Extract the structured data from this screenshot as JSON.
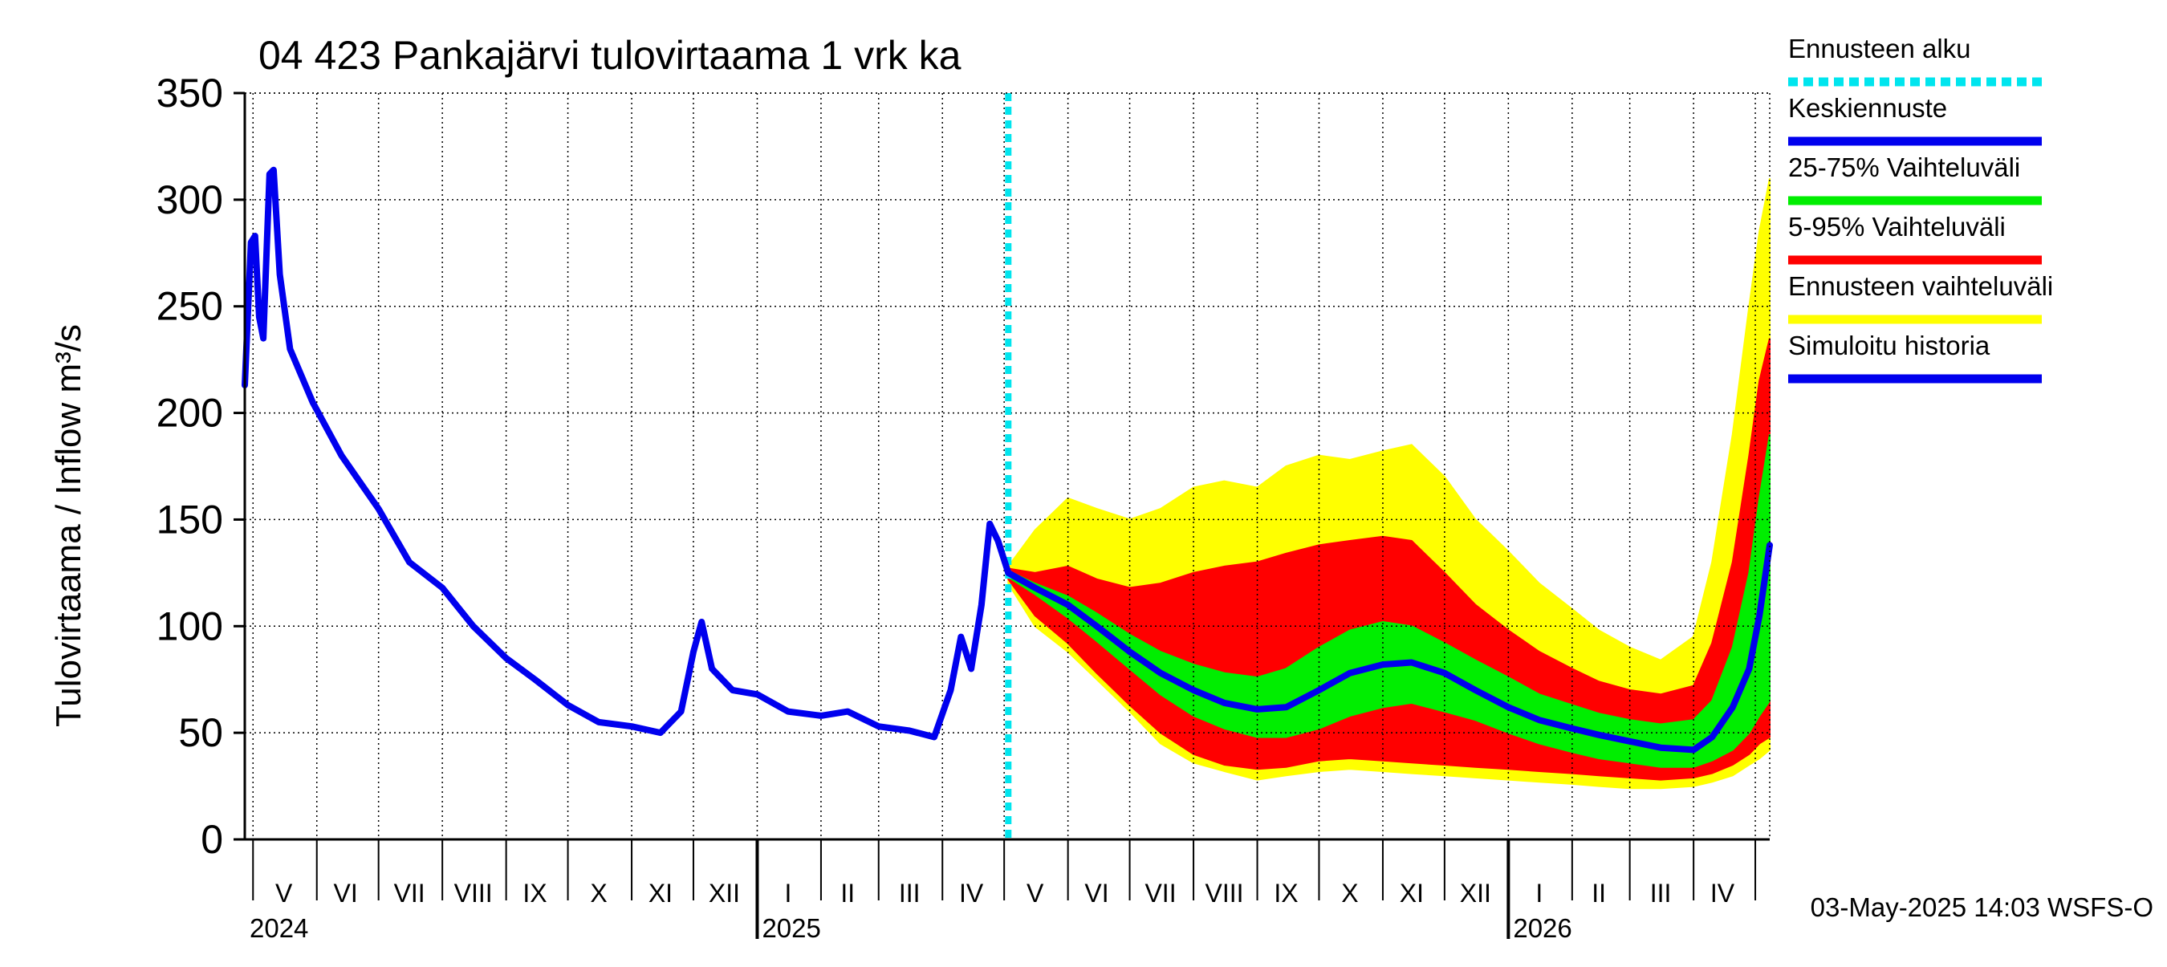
{
  "chart_data": {
    "type": "area",
    "title": "04 423 Pankajärvi tulovirtaama 1 vrk ka",
    "ylabel": "Tulovirtaama / Inflow    m³/s",
    "ylim": [
      0,
      350
    ],
    "yticks": [
      0,
      50,
      100,
      150,
      200,
      250,
      300,
      350
    ],
    "xlim": [
      "2024-04-27",
      "2026-05-08"
    ],
    "grid": true,
    "legend_position": "right",
    "forecast_start": "2025-05-03",
    "footer": "03-May-2025 14:03 WSFS-O",
    "month_labels": [
      {
        "label": "V",
        "date": "2024-05-16"
      },
      {
        "label": "VI",
        "date": "2024-06-15"
      },
      {
        "label": "VII",
        "date": "2024-07-16"
      },
      {
        "label": "VIII",
        "date": "2024-08-16"
      },
      {
        "label": "IX",
        "date": "2024-09-15"
      },
      {
        "label": "X",
        "date": "2024-10-16"
      },
      {
        "label": "XI",
        "date": "2024-11-15"
      },
      {
        "label": "XII",
        "date": "2024-12-16"
      },
      {
        "label": "I",
        "date": "2025-01-16"
      },
      {
        "label": "II",
        "date": "2025-02-14"
      },
      {
        "label": "III",
        "date": "2025-03-16"
      },
      {
        "label": "IV",
        "date": "2025-04-15"
      },
      {
        "label": "V",
        "date": "2025-05-16"
      },
      {
        "label": "VI",
        "date": "2025-06-15"
      },
      {
        "label": "VII",
        "date": "2025-07-16"
      },
      {
        "label": "VIII",
        "date": "2025-08-16"
      },
      {
        "label": "IX",
        "date": "2025-09-15"
      },
      {
        "label": "X",
        "date": "2025-10-16"
      },
      {
        "label": "XI",
        "date": "2025-11-15"
      },
      {
        "label": "XII",
        "date": "2025-12-16"
      },
      {
        "label": "I",
        "date": "2026-01-16"
      },
      {
        "label": "II",
        "date": "2026-02-14"
      },
      {
        "label": "III",
        "date": "2026-03-16"
      },
      {
        "label": "IV",
        "date": "2026-04-15"
      }
    ],
    "year_labels": [
      {
        "label": "2024",
        "date": "2024-04-27"
      },
      {
        "label": "2025",
        "date": "2025-01-01"
      },
      {
        "label": "2026",
        "date": "2026-01-01"
      }
    ],
    "legend": [
      {
        "label": "Ennusteen alku",
        "color": "#00e5ee",
        "style": "dashed"
      },
      {
        "label": "Keskiennuste",
        "color": "#0000ee",
        "style": "solid"
      },
      {
        "label": "25-75% Vaihteluväli",
        "color": "#00ee00",
        "style": "solid"
      },
      {
        "label": "5-95% Vaihteluväli",
        "color": "#ff0000",
        "style": "solid"
      },
      {
        "label": "Ennusteen vaihteluväli",
        "color": "#ffff00",
        "style": "solid"
      },
      {
        "label": "Simuloitu historia",
        "color": "#0000ee",
        "style": "solid"
      }
    ],
    "series": [
      {
        "name": "Simuloitu historia",
        "color": "#0000ee",
        "points": [
          [
            "2024-04-27",
            213
          ],
          [
            "2024-04-30",
            280
          ],
          [
            "2024-05-02",
            283
          ],
          [
            "2024-05-04",
            245
          ],
          [
            "2024-05-06",
            235
          ],
          [
            "2024-05-09",
            312
          ],
          [
            "2024-05-11",
            314
          ],
          [
            "2024-05-14",
            265
          ],
          [
            "2024-05-19",
            230
          ],
          [
            "2024-05-30",
            205
          ],
          [
            "2024-06-13",
            180
          ],
          [
            "2024-07-01",
            155
          ],
          [
            "2024-07-16",
            130
          ],
          [
            "2024-08-01",
            118
          ],
          [
            "2024-08-16",
            100
          ],
          [
            "2024-09-01",
            85
          ],
          [
            "2024-09-15",
            75
          ],
          [
            "2024-10-01",
            63
          ],
          [
            "2024-10-16",
            55
          ],
          [
            "2024-11-01",
            53
          ],
          [
            "2024-11-15",
            50
          ],
          [
            "2024-11-25",
            60
          ],
          [
            "2024-12-01",
            88
          ],
          [
            "2024-12-05",
            102
          ],
          [
            "2024-12-10",
            80
          ],
          [
            "2024-12-20",
            70
          ],
          [
            "2025-01-01",
            68
          ],
          [
            "2025-01-16",
            60
          ],
          [
            "2025-02-01",
            58
          ],
          [
            "2025-02-14",
            60
          ],
          [
            "2025-03-01",
            53
          ],
          [
            "2025-03-16",
            51
          ],
          [
            "2025-03-28",
            48
          ],
          [
            "2025-04-05",
            70
          ],
          [
            "2025-04-10",
            95
          ],
          [
            "2025-04-15",
            80
          ],
          [
            "2025-04-20",
            110
          ],
          [
            "2025-04-24",
            148
          ],
          [
            "2025-04-28",
            140
          ],
          [
            "2025-05-03",
            125
          ]
        ]
      },
      {
        "name": "Keskiennuste",
        "color": "#0000ee",
        "points": [
          [
            "2025-05-03",
            125
          ],
          [
            "2025-05-16",
            118
          ],
          [
            "2025-06-01",
            110
          ],
          [
            "2025-06-15",
            100
          ],
          [
            "2025-07-01",
            88
          ],
          [
            "2025-07-16",
            78
          ],
          [
            "2025-08-01",
            70
          ],
          [
            "2025-08-16",
            64
          ],
          [
            "2025-09-01",
            61
          ],
          [
            "2025-09-15",
            62
          ],
          [
            "2025-10-01",
            70
          ],
          [
            "2025-10-16",
            78
          ],
          [
            "2025-11-01",
            82
          ],
          [
            "2025-11-15",
            83
          ],
          [
            "2025-12-01",
            78
          ],
          [
            "2025-12-16",
            70
          ],
          [
            "2026-01-01",
            62
          ],
          [
            "2026-01-16",
            56
          ],
          [
            "2026-02-01",
            52
          ],
          [
            "2026-02-14",
            49
          ],
          [
            "2026-03-01",
            46
          ],
          [
            "2026-03-16",
            43
          ],
          [
            "2026-04-01",
            42
          ],
          [
            "2026-04-10",
            48
          ],
          [
            "2026-04-20",
            62
          ],
          [
            "2026-04-28",
            80
          ],
          [
            "2026-05-03",
            105
          ],
          [
            "2026-05-08",
            138
          ]
        ]
      }
    ],
    "bands": [
      {
        "name": "Ennusteen vaihteluväli",
        "color": "#ffff00",
        "points": [
          [
            "2025-05-03",
            128,
            120
          ],
          [
            "2025-05-16",
            145,
            100
          ],
          [
            "2025-06-01",
            160,
            88
          ],
          [
            "2025-06-15",
            155,
            75
          ],
          [
            "2025-07-01",
            150,
            60
          ],
          [
            "2025-07-16",
            155,
            45
          ],
          [
            "2025-08-01",
            165,
            36
          ],
          [
            "2025-08-16",
            168,
            32
          ],
          [
            "2025-09-01",
            165,
            28
          ],
          [
            "2025-09-15",
            175,
            30
          ],
          [
            "2025-10-01",
            180,
            32
          ],
          [
            "2025-10-16",
            178,
            33
          ],
          [
            "2025-11-01",
            182,
            32
          ],
          [
            "2025-11-15",
            185,
            31
          ],
          [
            "2025-12-01",
            170,
            30
          ],
          [
            "2025-12-16",
            150,
            29
          ],
          [
            "2026-01-01",
            135,
            28
          ],
          [
            "2026-01-16",
            120,
            27
          ],
          [
            "2026-02-01",
            108,
            26
          ],
          [
            "2026-02-14",
            98,
            25
          ],
          [
            "2026-03-01",
            90,
            24
          ],
          [
            "2026-03-16",
            84,
            24
          ],
          [
            "2026-04-01",
            95,
            25
          ],
          [
            "2026-04-10",
            130,
            27
          ],
          [
            "2026-04-20",
            190,
            30
          ],
          [
            "2026-04-28",
            250,
            35
          ],
          [
            "2026-05-03",
            285,
            38
          ],
          [
            "2026-05-08",
            310,
            42
          ]
        ]
      },
      {
        "name": "5-95% Vaihteluväli",
        "color": "#ff0000",
        "points": [
          [
            "2025-05-03",
            127,
            122
          ],
          [
            "2025-05-16",
            125,
            105
          ],
          [
            "2025-06-01",
            128,
            92
          ],
          [
            "2025-06-15",
            122,
            78
          ],
          [
            "2025-07-01",
            118,
            63
          ],
          [
            "2025-07-16",
            120,
            50
          ],
          [
            "2025-08-01",
            125,
            40
          ],
          [
            "2025-08-16",
            128,
            35
          ],
          [
            "2025-09-01",
            130,
            33
          ],
          [
            "2025-09-15",
            134,
            34
          ],
          [
            "2025-10-01",
            138,
            37
          ],
          [
            "2025-10-16",
            140,
            38
          ],
          [
            "2025-11-01",
            142,
            37
          ],
          [
            "2025-11-15",
            140,
            36
          ],
          [
            "2025-12-01",
            125,
            35
          ],
          [
            "2025-12-16",
            110,
            34
          ],
          [
            "2026-01-01",
            98,
            33
          ],
          [
            "2026-01-16",
            88,
            32
          ],
          [
            "2026-02-01",
            80,
            31
          ],
          [
            "2026-02-14",
            74,
            30
          ],
          [
            "2026-03-01",
            70,
            29
          ],
          [
            "2026-03-16",
            68,
            28
          ],
          [
            "2026-04-01",
            72,
            29
          ],
          [
            "2026-04-10",
            92,
            31
          ],
          [
            "2026-04-20",
            130,
            35
          ],
          [
            "2026-04-28",
            180,
            40
          ],
          [
            "2026-05-03",
            215,
            45
          ],
          [
            "2026-05-08",
            235,
            48
          ]
        ]
      },
      {
        "name": "25-75% Vaihteluväli",
        "color": "#00ee00",
        "points": [
          [
            "2025-05-03",
            126,
            123
          ],
          [
            "2025-05-16",
            120,
            115
          ],
          [
            "2025-06-01",
            114,
            104
          ],
          [
            "2025-06-15",
            106,
            93
          ],
          [
            "2025-07-01",
            96,
            80
          ],
          [
            "2025-07-16",
            88,
            68
          ],
          [
            "2025-08-01",
            82,
            58
          ],
          [
            "2025-08-16",
            78,
            52
          ],
          [
            "2025-09-01",
            76,
            48
          ],
          [
            "2025-09-15",
            80,
            48
          ],
          [
            "2025-10-01",
            90,
            52
          ],
          [
            "2025-10-16",
            98,
            58
          ],
          [
            "2025-11-01",
            102,
            62
          ],
          [
            "2025-11-15",
            100,
            64
          ],
          [
            "2025-12-01",
            92,
            60
          ],
          [
            "2025-12-16",
            84,
            56
          ],
          [
            "2026-01-01",
            76,
            50
          ],
          [
            "2026-01-16",
            68,
            45
          ],
          [
            "2026-02-01",
            63,
            41
          ],
          [
            "2026-02-14",
            59,
            38
          ],
          [
            "2026-03-01",
            56,
            36
          ],
          [
            "2026-03-16",
            54,
            34
          ],
          [
            "2026-04-01",
            56,
            34
          ],
          [
            "2026-04-10",
            65,
            37
          ],
          [
            "2026-04-20",
            90,
            42
          ],
          [
            "2026-04-28",
            125,
            50
          ],
          [
            "2026-05-03",
            160,
            58
          ],
          [
            "2026-05-08",
            190,
            65
          ]
        ]
      }
    ]
  }
}
